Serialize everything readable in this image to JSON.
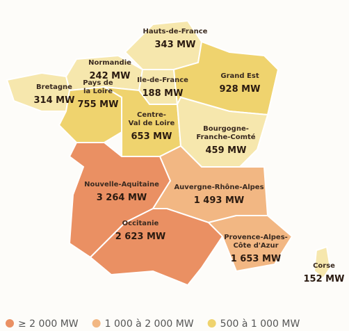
{
  "regions": [
    {
      "name_lines": [
        "Hauts-de-France"
      ],
      "value": "343 MW",
      "color": "#f6e7ad"
    },
    {
      "name_lines": [
        "Normandie"
      ],
      "value": "242 MW",
      "color": "#f6e7ad"
    },
    {
      "name_lines": [
        "Bretagne"
      ],
      "value": "314 MW",
      "color": "#f6e7ad"
    },
    {
      "name_lines": [
        "Ile-de-France"
      ],
      "value": "188 MW",
      "color": "#f6e7ad"
    },
    {
      "name_lines": [
        "Grand Est"
      ],
      "value": "928 MW",
      "color": "#efd36e"
    },
    {
      "name_lines": [
        "Pays de",
        "la Loire"
      ],
      "value": "755 MW",
      "color": "#efd36e"
    },
    {
      "name_lines": [
        "Centre-",
        "Val de Loire"
      ],
      "value": "653 MW",
      "color": "#efd36e"
    },
    {
      "name_lines": [
        "Bourgogne-",
        "Franche-Comté"
      ],
      "value": "459 MW",
      "color": "#f6e7ad"
    },
    {
      "name_lines": [
        "Nouvelle-Aquitaine"
      ],
      "value": "3 264 MW",
      "color": "#ea9063"
    },
    {
      "name_lines": [
        "Auvergne-Rhône-Alpes"
      ],
      "value": "1 493 MW",
      "color": "#f2b783"
    },
    {
      "name_lines": [
        "Occitanie"
      ],
      "value": "2 623 MW",
      "color": "#ea9063"
    },
    {
      "name_lines": [
        "Provence-Alpes-",
        "Côte d'Azur"
      ],
      "value": "1 653 MW",
      "color": "#f2b783"
    },
    {
      "name_lines": [
        "Corse"
      ],
      "value": "152 MW",
      "color": "#f6e7ad"
    }
  ],
  "legend": [
    {
      "label": "≥ 2 000 MW",
      "color": "#ea9063"
    },
    {
      "label": "1 000 à 2 000 MW",
      "color": "#f2b783"
    },
    {
      "label": "500 à 1 000 MW",
      "color": "#efd36e"
    }
  ]
}
